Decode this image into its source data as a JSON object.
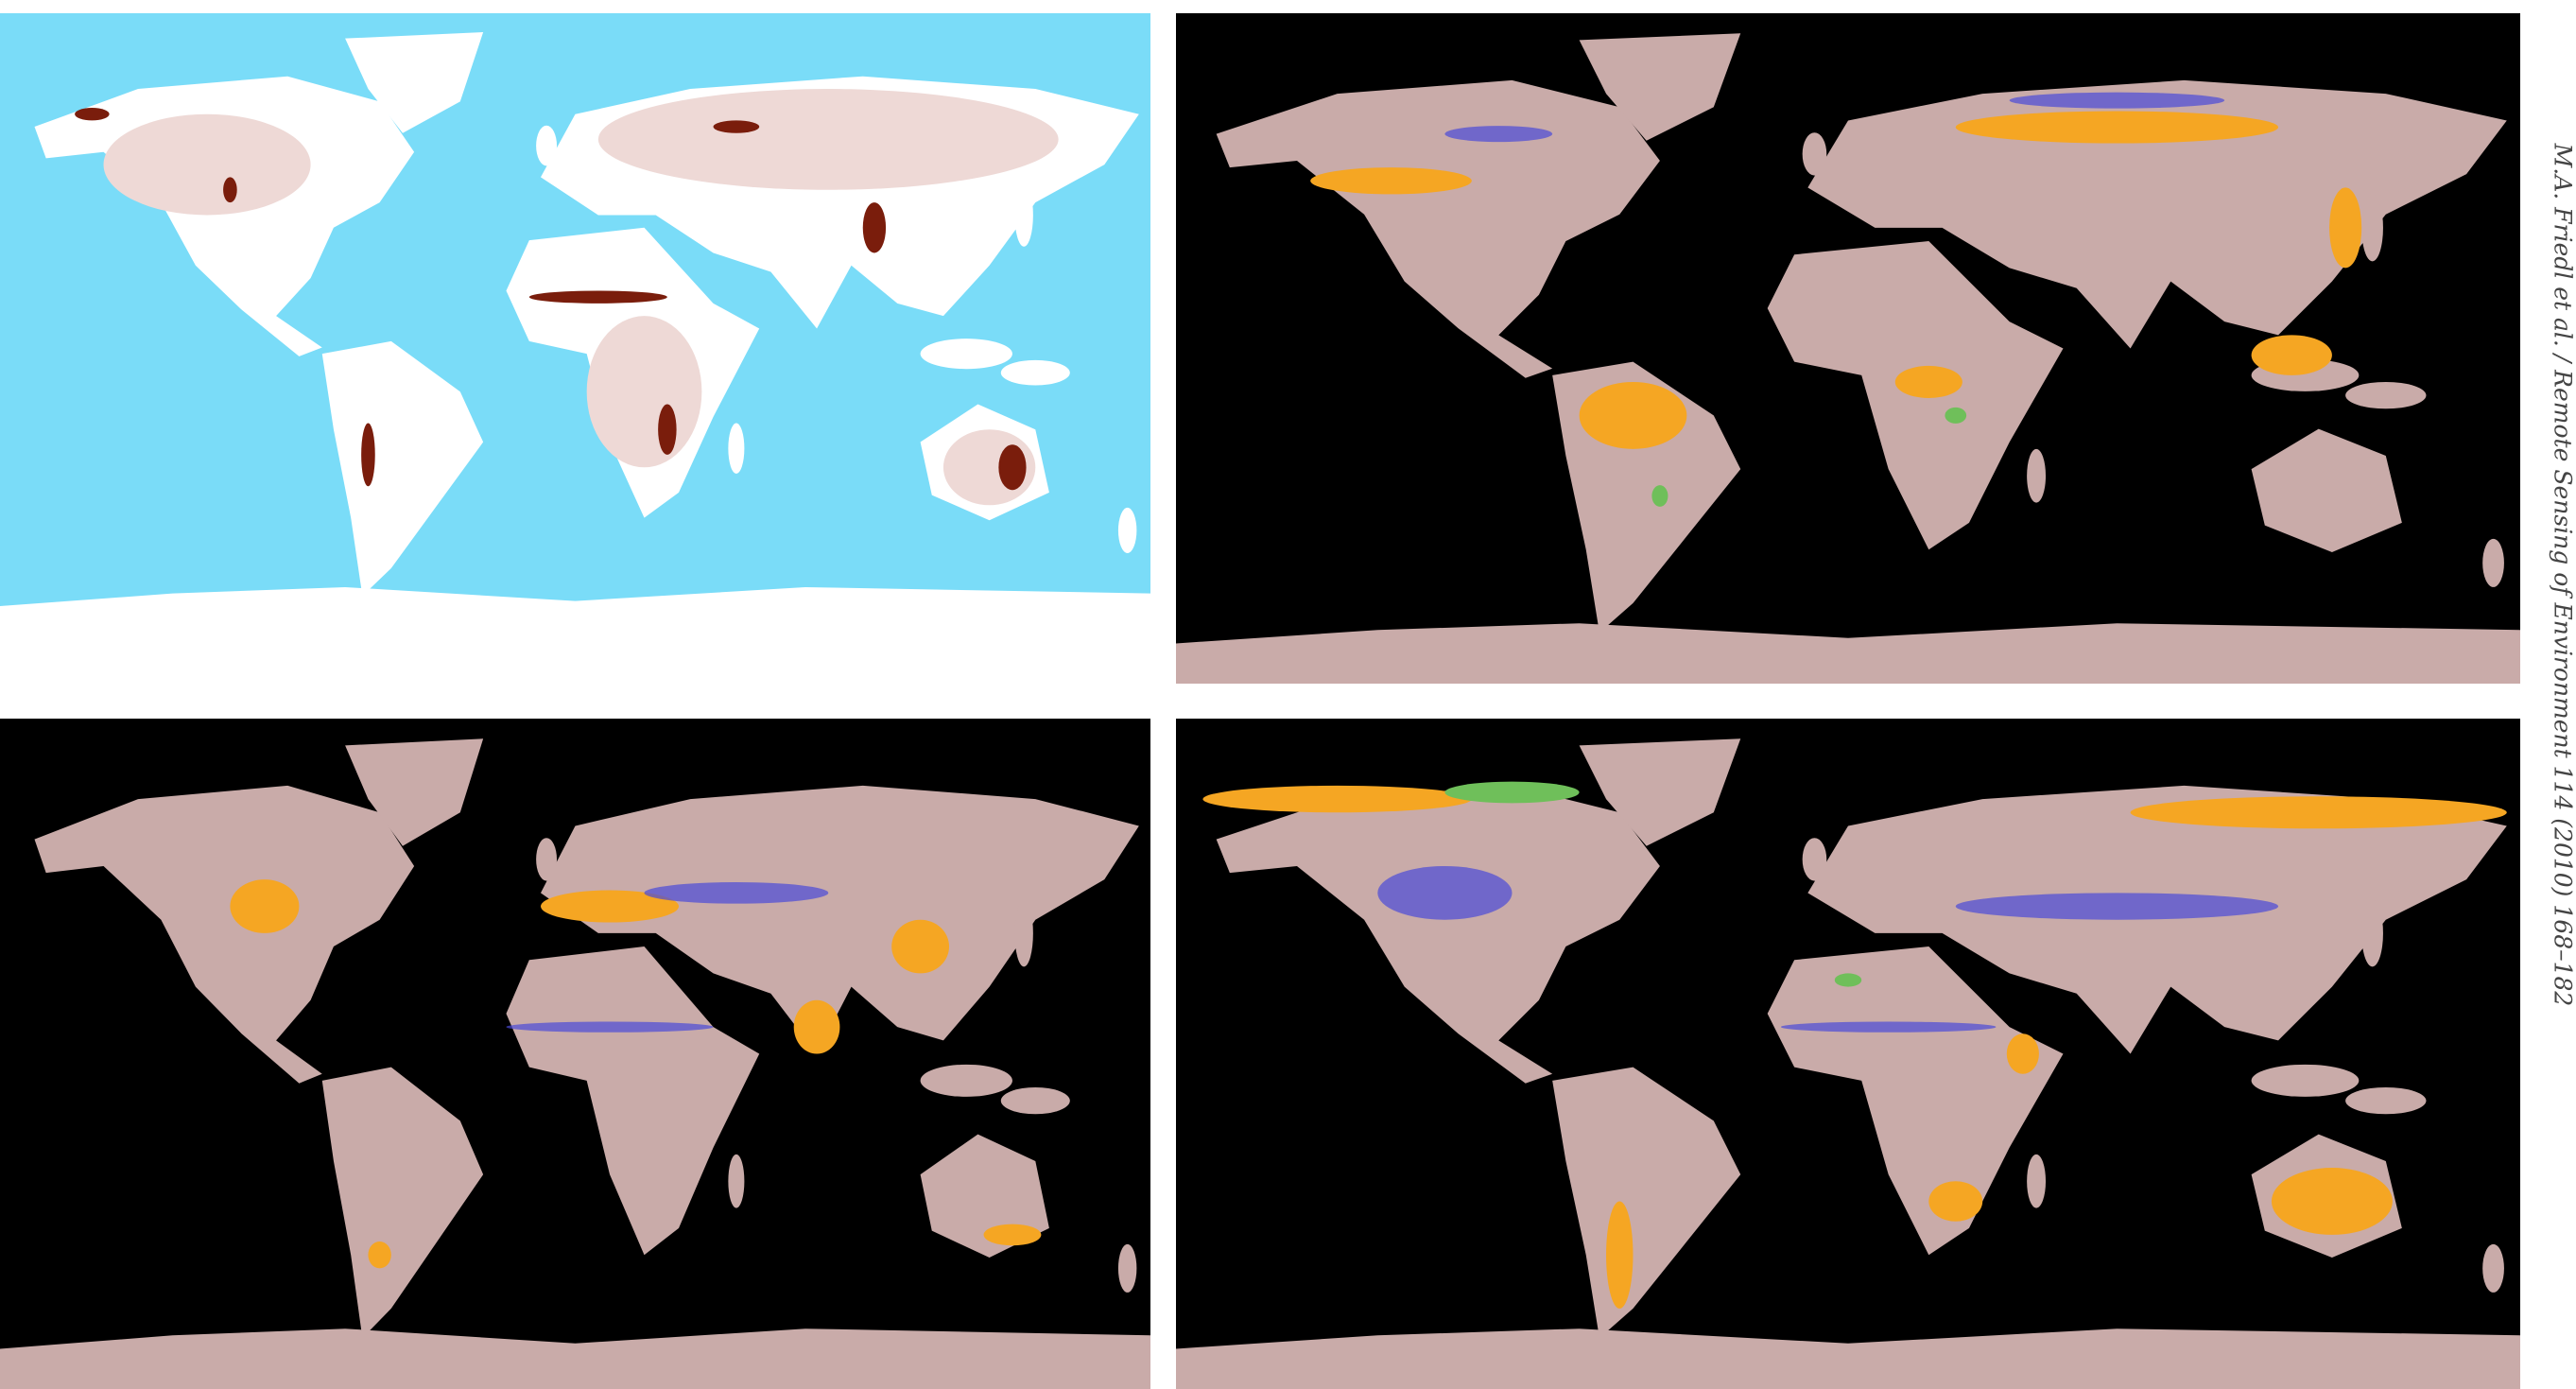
{
  "running_head": "M.A. Friedl et al. / Remote Sensing of Environment 114 (2010) 168–182"
}
